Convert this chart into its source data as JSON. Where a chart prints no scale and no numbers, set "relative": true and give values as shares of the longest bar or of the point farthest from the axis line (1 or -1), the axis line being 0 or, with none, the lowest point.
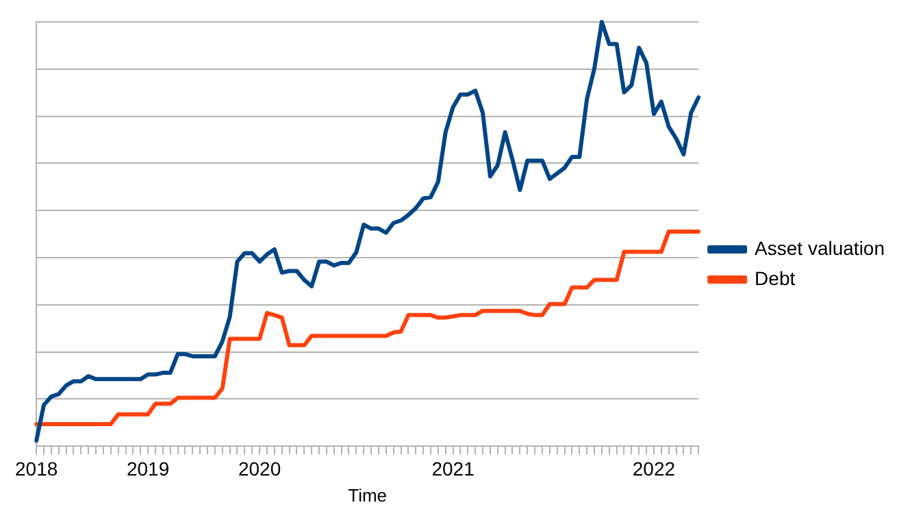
{
  "chart_data": {
    "type": "line",
    "relative": true,
    "xlabel": "Time",
    "grid": "y",
    "legend": "right",
    "marker": "none",
    "line_style": "solid",
    "categories": [
      "2018",
      null,
      null,
      null,
      null,
      null,
      null,
      null,
      null,
      null,
      null,
      null,
      null,
      null,
      null,
      "2019",
      null,
      null,
      null,
      null,
      null,
      null,
      null,
      null,
      null,
      null,
      null,
      null,
      null,
      null,
      "2020",
      null,
      null,
      null,
      null,
      null,
      null,
      null,
      null,
      null,
      null,
      null,
      null,
      null,
      null,
      null,
      null,
      null,
      null,
      null,
      null,
      null,
      null,
      null,
      null,
      null,
      "2021",
      null,
      null,
      null,
      null,
      null,
      null,
      null,
      null,
      null,
      null,
      null,
      null,
      null,
      null,
      null,
      null,
      null,
      null,
      null,
      null,
      null,
      null,
      null,
      null,
      null,
      null,
      "2022",
      null,
      null,
      null,
      null,
      null,
      null
    ],
    "series": [
      {
        "name": "Asset valuation",
        "color": "#004586",
        "values": [
          0.013,
          0.097,
          0.117,
          0.123,
          0.143,
          0.153,
          0.153,
          0.165,
          0.158,
          0.158,
          0.158,
          0.158,
          0.158,
          0.158,
          0.158,
          0.169,
          0.169,
          0.173,
          0.173,
          0.217,
          0.217,
          0.212,
          0.212,
          0.212,
          0.212,
          0.247,
          0.305,
          0.435,
          0.455,
          0.455,
          0.435,
          0.452,
          0.464,
          0.409,
          0.413,
          0.413,
          0.392,
          0.377,
          0.435,
          0.435,
          0.426,
          0.432,
          0.432,
          0.457,
          0.522,
          0.513,
          0.513,
          0.503,
          0.526,
          0.532,
          0.545,
          0.561,
          0.584,
          0.587,
          0.623,
          0.74,
          0.799,
          0.829,
          0.829,
          0.838,
          0.786,
          0.636,
          0.662,
          0.74,
          0.675,
          0.604,
          0.673,
          0.673,
          0.673,
          0.63,
          0.643,
          0.656,
          0.682,
          0.682,
          0.818,
          0.89,
          1,
          0.948,
          0.948,
          0.834,
          0.851,
          0.939,
          0.903,
          0.783,
          0.812,
          0.753,
          0.725,
          0.688,
          0.786,
          0.822
        ]
      },
      {
        "name": "Debt",
        "color": "#ff420e",
        "values": [
          0.052,
          0.052,
          0.052,
          0.052,
          0.052,
          0.052,
          0.052,
          0.052,
          0.052,
          0.052,
          0.052,
          0.075,
          0.075,
          0.075,
          0.075,
          0.075,
          0.1,
          0.1,
          0.1,
          0.114,
          0.114,
          0.114,
          0.114,
          0.114,
          0.114,
          0.136,
          0.253,
          0.253,
          0.253,
          0.253,
          0.253,
          0.314,
          0.309,
          0.303,
          0.238,
          0.238,
          0.238,
          0.26,
          0.26,
          0.26,
          0.26,
          0.26,
          0.26,
          0.26,
          0.26,
          0.26,
          0.26,
          0.26,
          0.268,
          0.27,
          0.309,
          0.309,
          0.309,
          0.309,
          0.303,
          0.303,
          0.306,
          0.309,
          0.309,
          0.309,
          0.319,
          0.319,
          0.319,
          0.319,
          0.319,
          0.319,
          0.312,
          0.309,
          0.309,
          0.335,
          0.335,
          0.335,
          0.374,
          0.374,
          0.374,
          0.392,
          0.392,
          0.392,
          0.392,
          0.458,
          0.458,
          0.458,
          0.458,
          0.458,
          0.458,
          0.506,
          0.506,
          0.506,
          0.506,
          0.506
        ]
      }
    ]
  }
}
